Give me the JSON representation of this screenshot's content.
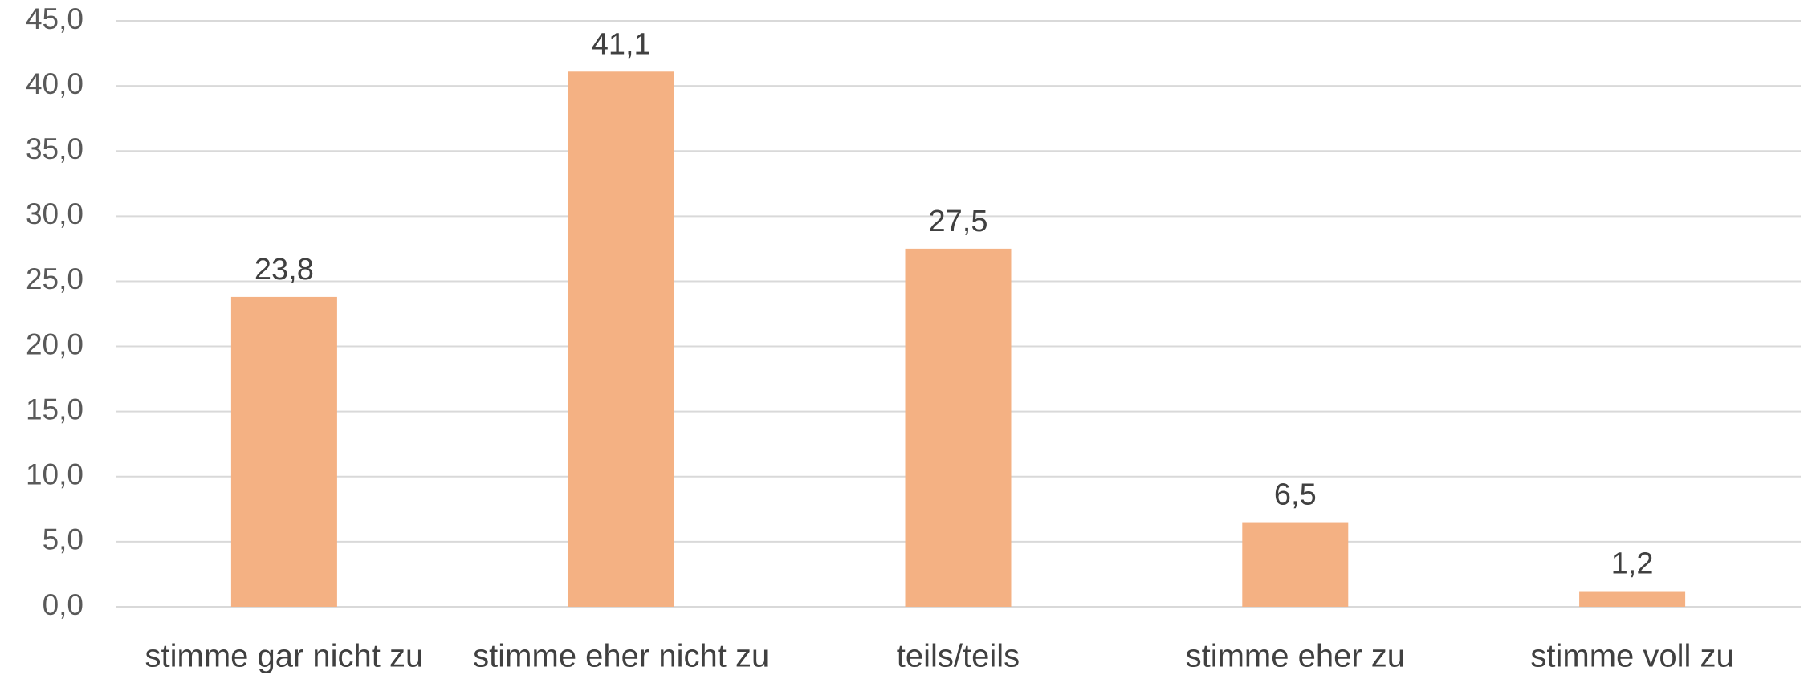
{
  "chart_data": {
    "type": "bar",
    "categories": [
      "stimme gar nicht zu",
      "stimme eher nicht zu",
      "teils/teils",
      "stimme eher zu",
      "stimme voll zu"
    ],
    "values": [
      23.8,
      41.1,
      27.5,
      6.5,
      1.2
    ],
    "value_labels": [
      "23,8",
      "41,1",
      "27,5",
      "6,5",
      "1,2"
    ],
    "color": "#f4b183",
    "ylim": [
      0,
      45
    ],
    "yticks": [
      {
        "value": 0,
        "label": "0,0"
      },
      {
        "value": 5,
        "label": "5,0"
      },
      {
        "value": 10,
        "label": "10,0"
      },
      {
        "value": 15,
        "label": "15,0"
      },
      {
        "value": 20,
        "label": "20,0"
      },
      {
        "value": 25,
        "label": "25,0"
      },
      {
        "value": 30,
        "label": "30,0"
      },
      {
        "value": 35,
        "label": "35,0"
      },
      {
        "value": 40,
        "label": "40,0"
      },
      {
        "value": 45,
        "label": "45,0"
      }
    ],
    "grid": true
  }
}
